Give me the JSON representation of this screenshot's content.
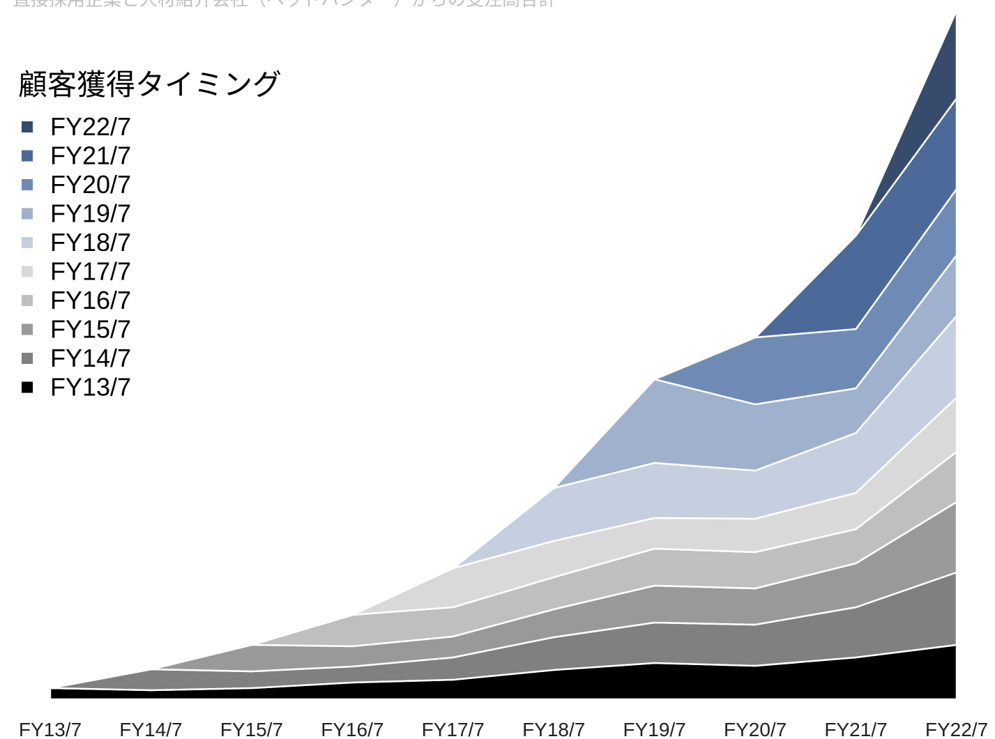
{
  "chart_data": {
    "type": "stacked-area",
    "title": "直接採用企業と人材紹介会社（ヘッドハンター）からの受注高合計",
    "legend_title": "顧客獲得タイミング",
    "categories": [
      "FY13/7",
      "FY14/7",
      "FY15/7",
      "FY16/7",
      "FY17/7",
      "FY18/7",
      "FY19/7",
      "FY20/7",
      "FY21/7",
      "FY22/7"
    ],
    "series": [
      {
        "name": "FY13/7",
        "color": "#000000",
        "values": [
          16,
          13,
          16,
          24,
          28,
          42,
          52,
          48,
          60,
          78
        ]
      },
      {
        "name": "FY14/7",
        "color": "#808080",
        "values": [
          0,
          30,
          24,
          23,
          32,
          47,
          58,
          59,
          72,
          104
        ]
      },
      {
        "name": "FY15/7",
        "color": "#999999",
        "values": [
          0,
          0,
          38,
          29,
          30,
          40,
          53,
          52,
          63,
          101
        ]
      },
      {
        "name": "FY16/7",
        "color": "#bfbfbf",
        "values": [
          0,
          0,
          0,
          45,
          42,
          46,
          53,
          52,
          49,
          72
        ]
      },
      {
        "name": "FY17/7",
        "color": "#d9d9d9",
        "values": [
          0,
          0,
          0,
          0,
          56,
          52,
          44,
          48,
          52,
          78
        ]
      },
      {
        "name": "FY18/7",
        "color": "#c5cfe0",
        "values": [
          0,
          0,
          0,
          0,
          0,
          76,
          79,
          69,
          86,
          117
        ]
      },
      {
        "name": "FY19/7",
        "color": "#9fb1cd",
        "values": [
          0,
          0,
          0,
          0,
          0,
          0,
          120,
          95,
          64,
          87
        ]
      },
      {
        "name": "FY20/7",
        "color": "#6f8bb5",
        "values": [
          0,
          0,
          0,
          0,
          0,
          0,
          0,
          96,
          85,
          95
        ]
      },
      {
        "name": "FY21/7",
        "color": "#4b6a99",
        "values": [
          0,
          0,
          0,
          0,
          0,
          0,
          0,
          0,
          134,
          130
        ]
      },
      {
        "name": "FY22/7",
        "color": "#374c6c",
        "values": [
          0,
          0,
          0,
          0,
          0,
          0,
          0,
          0,
          0,
          126
        ]
      }
    ]
  }
}
